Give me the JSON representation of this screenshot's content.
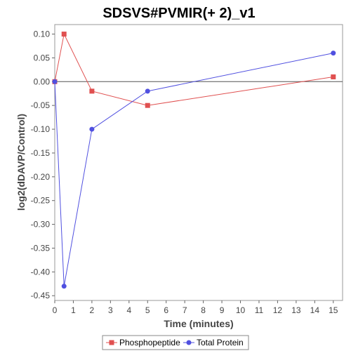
{
  "chart_data": {
    "type": "line",
    "title": "SDSVS#PVMIR(+ 2)_v1",
    "xlabel": "Time (minutes)",
    "ylabel": "log2(dDAVP/Control)",
    "xlim": [
      0,
      15.5
    ],
    "ylim": [
      -0.46,
      0.12
    ],
    "x_ticks": [
      0,
      1,
      2,
      3,
      4,
      5,
      6,
      7,
      8,
      9,
      10,
      11,
      12,
      13,
      14,
      15
    ],
    "y_ticks": [
      0.1,
      0.05,
      0.0,
      -0.05,
      -0.1,
      -0.15,
      -0.2,
      -0.25,
      -0.3,
      -0.35,
      -0.4,
      -0.45
    ],
    "y_tick_labels": [
      "0.10",
      "0.05",
      "0.00",
      "-0.05",
      "-0.10",
      "-0.15",
      "-0.20",
      "-0.25",
      "-0.30",
      "-0.35",
      "-0.40",
      "-0.45"
    ],
    "grid": false,
    "legend_position": "bottom",
    "series": [
      {
        "name": "Phosphopeptide",
        "color": "#e05050",
        "marker": "square",
        "x": [
          0,
          0.5,
          2,
          5,
          15
        ],
        "y": [
          0.0,
          0.1,
          -0.02,
          -0.05,
          0.01
        ]
      },
      {
        "name": "Total Protein",
        "color": "#5050e0",
        "marker": "circle",
        "x": [
          0,
          0.5,
          2,
          5,
          15
        ],
        "y": [
          0.0,
          -0.43,
          -0.1,
          -0.02,
          0.06
        ]
      }
    ]
  }
}
